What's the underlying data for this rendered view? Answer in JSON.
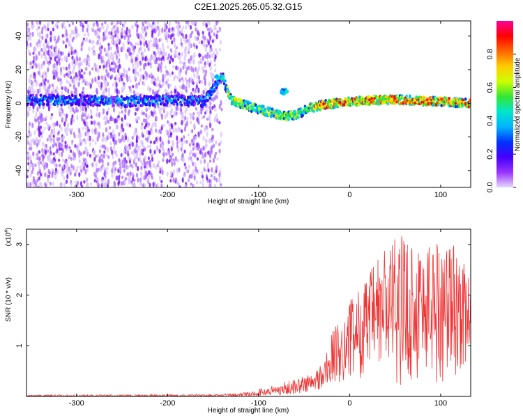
{
  "chart_data": [
    {
      "type": "heatmap",
      "title": "C2E1.2025.265.05.32.G15",
      "xlabel": "Height of straight line (km)",
      "ylabel": "Frequency (Hz)",
      "xlim": [
        -355,
        133
      ],
      "ylim": [
        -50,
        49
      ],
      "xticks": [
        -300,
        -200,
        -100,
        0,
        100
      ],
      "yticks": [
        -40,
        -20,
        0,
        20,
        40
      ],
      "colorbar": {
        "label": "Normalized spectral amplitude",
        "range": [
          0,
          1
        ],
        "ticks": [
          0.0,
          0.2,
          0.4,
          0.6,
          0.8
        ],
        "colors": [
          "#e6d9ff",
          "#9933ff",
          "#4400ff",
          "#0033ff",
          "#00b3ff",
          "#00e6cc",
          "#33e633",
          "#ccff00",
          "#ffcc00",
          "#ff6600",
          "#ff0000",
          "#ff0099"
        ]
      },
      "ridge": {
        "x": [
          -355,
          -300,
          -250,
          -200,
          -160,
          -140,
          -130,
          -110,
          -90,
          -70,
          -55,
          -45,
          -30,
          0,
          30,
          60,
          100,
          133
        ],
        "frequency": [
          2,
          2,
          1,
          2,
          1,
          16,
          2,
          -2,
          -5,
          -8,
          -6,
          -3,
          -1,
          1,
          2,
          2,
          1,
          0
        ]
      }
    },
    {
      "type": "line",
      "ylabel": "SNR (10 * v/v)",
      "xlabel": "Height of straight line (km)",
      "yscale_label": "(x10",
      "yscale_exp": "4",
      "xlim": [
        -355,
        133
      ],
      "ylim": [
        0,
        3.3
      ],
      "xticks": [
        -300,
        -200,
        -100,
        0,
        100
      ],
      "yticks": [
        1,
        2,
        3
      ],
      "series": [
        {
          "name": "SNR",
          "color": "#ee3333",
          "envelope_x": [
            -355,
            -150,
            -110,
            -90,
            -60,
            -40,
            -30,
            -20,
            -10,
            0,
            20,
            40,
            60,
            80,
            100,
            115,
            133
          ],
          "envelope_max": [
            0.03,
            0.04,
            0.08,
            0.2,
            0.35,
            0.5,
            0.7,
            1.3,
            1.5,
            1.9,
            2.4,
            3.1,
            3.2,
            3.1,
            3.2,
            3.1,
            2.3
          ],
          "envelope_min": [
            0.0,
            0.0,
            0.01,
            0.02,
            0.05,
            0.1,
            0.15,
            0.2,
            0.25,
            0.3,
            0.4,
            0.3,
            0.2,
            0.3,
            0.2,
            0.3,
            0.8
          ]
        }
      ]
    }
  ]
}
